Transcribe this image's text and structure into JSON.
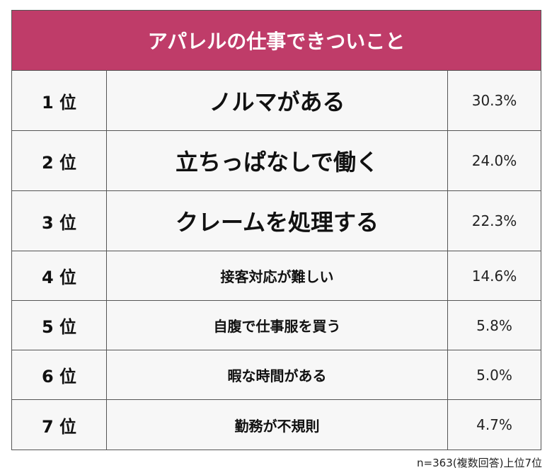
{
  "header": {
    "title": "アパレルの仕事できついこと"
  },
  "table": {
    "rows": [
      [
        "1 位",
        "ノルマがある",
        "30.3%"
      ],
      [
        "2 位",
        "立ちっぱなしで働く",
        "24.0%"
      ],
      [
        "3 位",
        "クレームを処理する",
        "22.3%"
      ],
      [
        "4 位",
        "接客対応が難しい",
        "14.6%"
      ],
      [
        "5 位",
        "自腹で仕事服を買う",
        "5.8%"
      ],
      [
        "6 位",
        "暇な時間がある",
        "5.0%"
      ],
      [
        "7 位",
        "勤務が不規則",
        "4.7%"
      ]
    ]
  },
  "footnote": "n=363(複数回答)上位7位"
}
